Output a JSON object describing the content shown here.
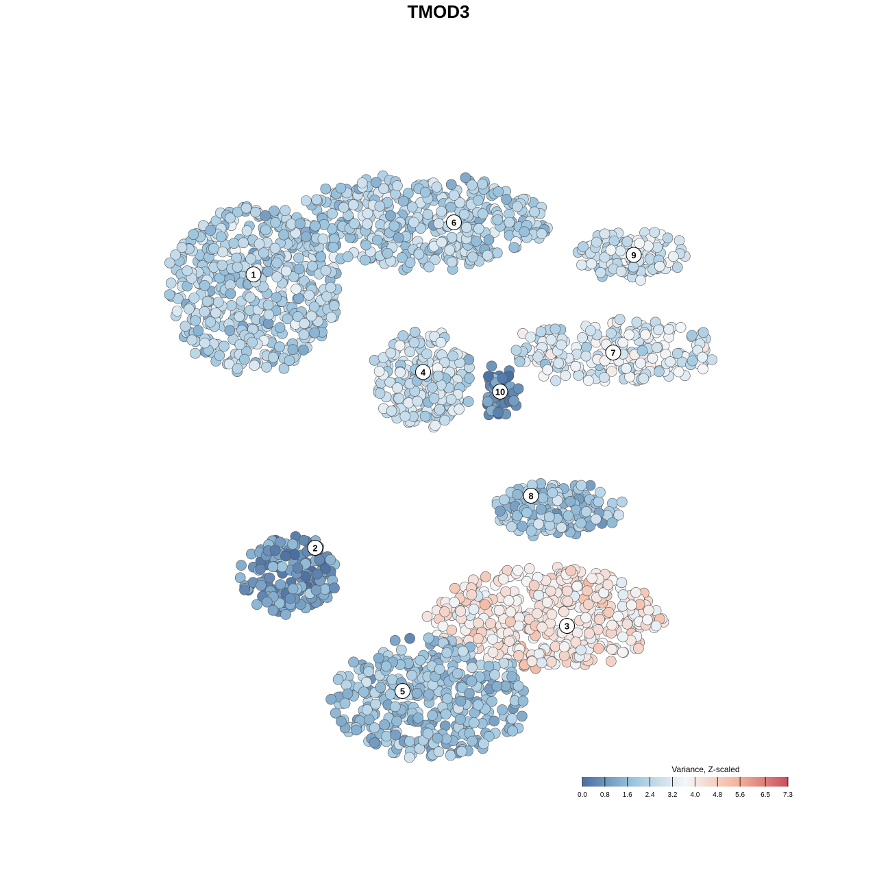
{
  "chart_data": {
    "type": "scatter",
    "title": "TMOD3",
    "xlabel": "",
    "ylabel": "",
    "grid": false,
    "legend": {
      "title": "Variance, Z-scaled",
      "placement": "bottom-right",
      "ticks": [
        "0.0",
        "0.8",
        "1.6",
        "2.4",
        "3.2",
        "4.0",
        "4.8",
        "5.6",
        "6.5",
        "7.3"
      ],
      "range": [
        0.0,
        7.3
      ]
    },
    "colors": {
      "low": "#4a6fa0",
      "mid_low": "#9cc5df",
      "mid": "#f4f6f8",
      "mid_high": "#f4b59e",
      "high": "#c9515e"
    },
    "clusters": [
      {
        "label": "1",
        "x": -3.6,
        "y": 2.1,
        "mean_value": 2.3
      },
      {
        "label": "2",
        "x": -2.4,
        "y": -2.1,
        "mean_value": 1.0
      },
      {
        "label": "3",
        "x": 2.5,
        "y": -3.3,
        "mean_value": 4.1
      },
      {
        "label": "4",
        "x": -0.3,
        "y": 0.6,
        "mean_value": 2.7
      },
      {
        "label": "5",
        "x": -0.7,
        "y": -4.3,
        "mean_value": 1.8
      },
      {
        "label": "6",
        "x": 0.3,
        "y": 2.9,
        "mean_value": 2.2
      },
      {
        "label": "7",
        "x": 3.4,
        "y": 0.9,
        "mean_value": 3.0
      },
      {
        "label": "8",
        "x": 1.8,
        "y": -1.3,
        "mean_value": 2.0
      },
      {
        "label": "9",
        "x": 3.8,
        "y": 2.4,
        "mean_value": 2.9
      },
      {
        "label": "10",
        "x": 1.2,
        "y": 0.3,
        "mean_value": 0.6
      }
    ]
  }
}
